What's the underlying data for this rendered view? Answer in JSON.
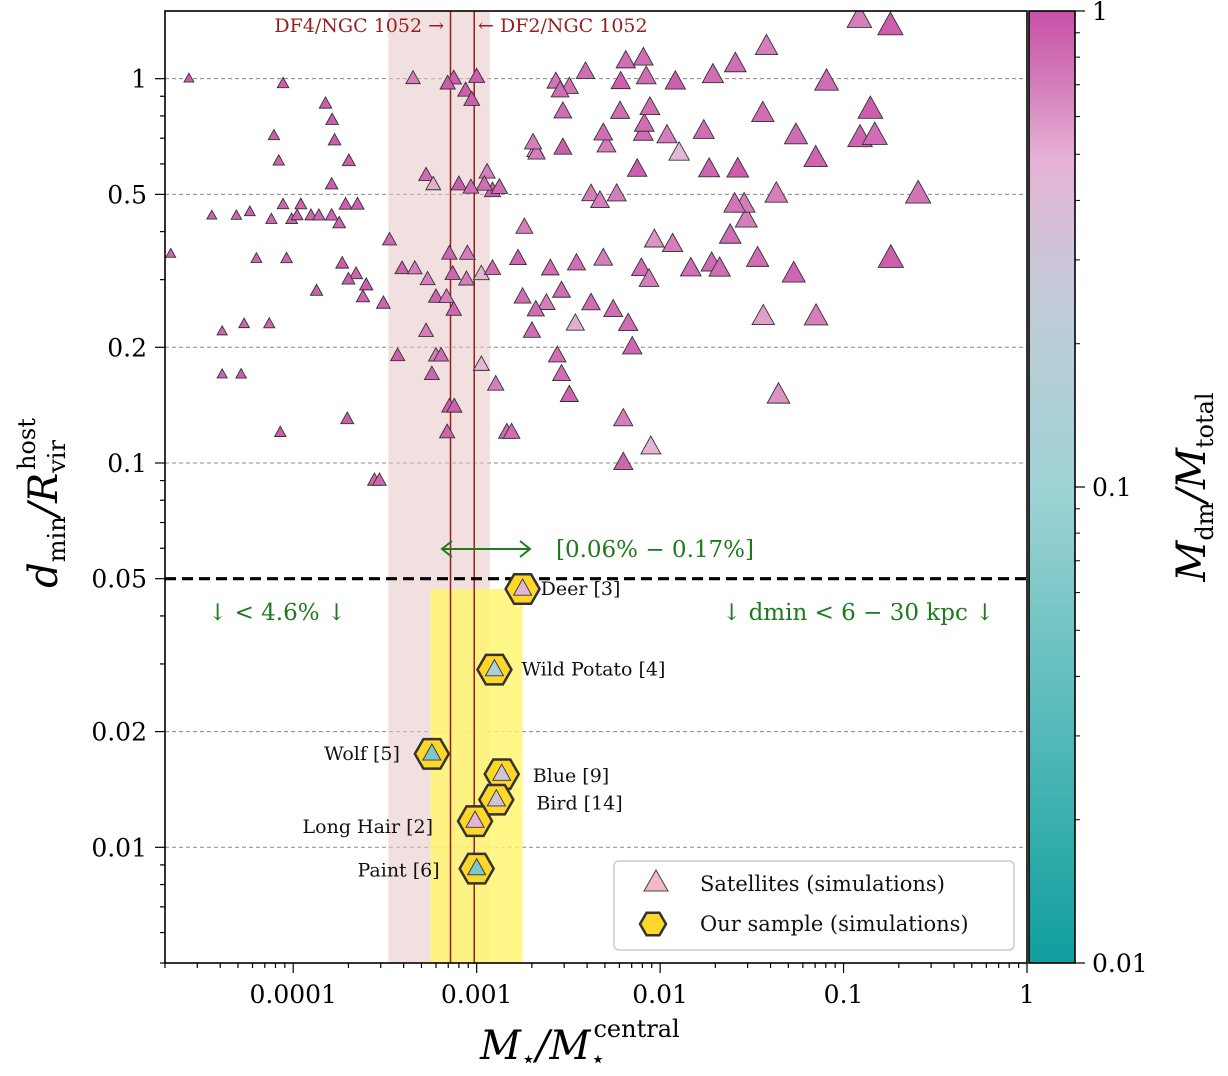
{
  "chart_data": {
    "type": "scatter",
    "xscale": "log",
    "yscale": "log",
    "xlim": [
      2e-05,
      1
    ],
    "ylim": [
      0.005,
      1.5
    ],
    "xlabel": "M⋆/M⋆central",
    "ylabel": "dmin/Rvir host",
    "x_ticks": [
      {
        "value": 0.0001,
        "label": "0.0001"
      },
      {
        "value": 0.001,
        "label": "0.001"
      },
      {
        "value": 0.01,
        "label": "0.01"
      },
      {
        "value": 0.1,
        "label": "0.1"
      },
      {
        "value": 1,
        "label": "1"
      }
    ],
    "y_ticks": [
      {
        "value": 0.01,
        "label": "0.01"
      },
      {
        "value": 0.02,
        "label": "0.02"
      },
      {
        "value": 0.05,
        "label": "0.05"
      },
      {
        "value": 0.1,
        "label": "0.1"
      },
      {
        "value": 0.2,
        "label": "0.2"
      },
      {
        "value": 0.5,
        "label": "0.5"
      },
      {
        "value": 1,
        "label": "1"
      }
    ],
    "grid": "horizontal dashed at y ticks",
    "colorbar": {
      "label": "Mdm/Mtotal",
      "scale": "log",
      "range": [
        0.01,
        1
      ],
      "ticks": [
        "0.01",
        "0.1",
        "1"
      ],
      "colors": [
        "#0f9e9e",
        "#b7d8de",
        "#cf6fb3",
        "#c851a7"
      ]
    },
    "threshold_line": {
      "y": 0.05
    },
    "ngc1052_band": {
      "x": [
        0.00033,
        0.00118
      ],
      "y": [
        0.005,
        1.5
      ],
      "color": "#e7c7c7"
    },
    "ngc1052_lines": [
      {
        "x": 0.00072,
        "label": "DF4/NGC 1052 →"
      },
      {
        "x": 0.00097,
        "label": "← DF2/NGC 1052"
      }
    ],
    "sample_band": {
      "x": [
        0.00056,
        0.00178
      ],
      "y": [
        0.005,
        0.047
      ],
      "color": "#fff56d"
    },
    "annotations": {
      "range_text": "[0.06% − 0.17%]",
      "left_text": "↓ < 4.6% ↓",
      "right_text": "↓ dmin < 6 − 30 kpc ↓"
    },
    "legend": {
      "position": "lower-right",
      "entries": [
        "Satellites (simulations)",
        "Our sample (simulations)"
      ]
    },
    "series": [
      {
        "name": "Satellites (simulations)",
        "marker": "triangle",
        "points": [
          [
            2.7e-05,
            1.0,
            0.9
          ],
          [
            8.8e-05,
            0.97,
            0.9
          ],
          [
            0.00011,
            0.47,
            0.85
          ],
          [
            7.85e-05,
            0.71,
            0.9
          ],
          [
            8.34e-05,
            0.61,
            0.85
          ],
          [
            0.000163,
            0.78,
            0.9
          ],
          [
            0.000168,
            0.69,
            0.9
          ],
          [
            0.00015,
            0.86,
            0.9
          ],
          [
            0.000162,
            0.53,
            0.9
          ],
          [
            0.000201,
            0.61,
            0.9
          ],
          [
            3.6e-05,
            0.44,
            0.85
          ],
          [
            4.9e-05,
            0.44,
            0.85
          ],
          [
            5.8e-05,
            0.45,
            0.9
          ],
          [
            7.6e-05,
            0.43,
            0.85
          ],
          [
            8.8e-05,
            0.47,
            0.85
          ],
          [
            9.8e-05,
            0.43,
            0.85
          ],
          [
            0.000105,
            0.44,
            0.85
          ],
          [
            0.000125,
            0.44,
            0.85
          ],
          [
            0.000138,
            0.44,
            0.85
          ],
          [
            0.000162,
            0.44,
            0.85
          ],
          [
            0.000178,
            0.42,
            0.85
          ],
          [
            0.000193,
            0.47,
            0.9
          ],
          [
            0.000224,
            0.47,
            0.9
          ],
          [
            0.00022,
            0.31,
            0.85
          ],
          [
            0.00025,
            0.29,
            0.9
          ],
          [
            0.00024,
            0.27,
            0.85
          ],
          [
            0.000335,
            0.38,
            0.85
          ],
          [
            0.000392,
            0.32,
            0.85
          ],
          [
            0.00031,
            0.26,
            0.85
          ],
          [
            0.000185,
            0.33,
            0.9
          ],
          [
            0.0002,
            0.3,
            0.9
          ],
          [
            0.000134,
            0.28,
            0.9
          ],
          [
            6.3e-05,
            0.34,
            0.85
          ],
          [
            9.2e-05,
            0.34,
            0.85
          ],
          [
            2.15e-05,
            0.35,
            0.85
          ],
          [
            4.1e-05,
            0.22,
            0.85
          ],
          [
            5.4e-05,
            0.23,
            0.85
          ],
          [
            7.4e-05,
            0.23,
            0.85
          ],
          [
            4.1e-05,
            0.17,
            0.85
          ],
          [
            5.2e-05,
            0.17,
            0.9
          ],
          [
            8.5e-05,
            0.12,
            0.9
          ],
          [
            0.000197,
            0.13,
            0.9
          ],
          [
            0.000277,
            0.09,
            0.85
          ],
          [
            0.000295,
            0.09,
            0.85
          ],
          [
            0.000371,
            0.19,
            0.9
          ],
          [
            0.00045,
            1.0,
            0.7
          ],
          [
            0.00075,
            1.0,
            0.9
          ],
          [
            0.00087,
            0.93,
            0.9
          ],
          [
            0.001,
            1.01,
            0.9
          ],
          [
            0.00094,
            0.88,
            0.9
          ],
          [
            0.000695,
            0.97,
            0.9
          ],
          [
            0.00053,
            0.56,
            0.8
          ],
          [
            0.00058,
            0.53,
            0.5
          ],
          [
            0.0008,
            0.53,
            0.9
          ],
          [
            0.00114,
            0.57,
            0.7
          ],
          [
            0.00122,
            0.51,
            0.9
          ],
          [
            0.0011,
            0.53,
            0.8
          ],
          [
            0.00093,
            0.52,
            0.8
          ],
          [
            0.00046,
            0.32,
            0.7
          ],
          [
            0.00054,
            0.3,
            0.7
          ],
          [
            0.00071,
            0.35,
            0.85
          ],
          [
            0.00074,
            0.31,
            0.85
          ],
          [
            0.00088,
            0.3,
            0.7
          ],
          [
            0.00106,
            0.31,
            0.45
          ],
          [
            0.00122,
            0.32,
            0.8
          ],
          [
            0.00089,
            0.35,
            0.7
          ],
          [
            0.00075,
            0.25,
            0.85
          ],
          [
            0.0006,
            0.27,
            0.85
          ],
          [
            0.000685,
            0.27,
            0.7
          ],
          [
            0.00053,
            0.22,
            0.7
          ],
          [
            0.0006,
            0.19,
            0.7
          ],
          [
            0.00057,
            0.17,
            0.85
          ],
          [
            0.00064,
            0.19,
            0.8
          ],
          [
            0.00071,
            0.14,
            0.9
          ],
          [
            0.00069,
            0.12,
            0.85
          ],
          [
            0.000755,
            0.14,
            0.9
          ],
          [
            0.00106,
            0.18,
            0.45
          ],
          [
            0.00127,
            0.16,
            0.7
          ],
          [
            0.00146,
            0.12,
            0.8
          ],
          [
            0.00155,
            0.12,
            0.8
          ],
          [
            0.00168,
            0.34,
            0.85
          ],
          [
            0.00182,
            0.41,
            0.7
          ],
          [
            0.00133,
            0.52,
            0.8
          ],
          [
            0.00209,
            0.65,
            0.55
          ],
          [
            0.00295,
            0.66,
            0.9
          ],
          [
            0.0027,
            0.98,
            0.75
          ],
          [
            0.0032,
            0.95,
            0.75
          ],
          [
            0.00392,
            1.04,
            0.8
          ],
          [
            0.00212,
            0.64,
            0.7
          ],
          [
            0.00203,
            0.68,
            0.7
          ],
          [
            0.0042,
            0.5,
            0.7
          ],
          [
            0.00285,
            0.93,
            0.8
          ],
          [
            0.00295,
            0.82,
            0.8
          ],
          [
            0.0051,
            0.67,
            0.7
          ],
          [
            0.0047,
            0.48,
            0.7
          ],
          [
            0.0058,
            0.5,
            0.7
          ],
          [
            0.00605,
            0.82,
            0.8
          ],
          [
            0.0049,
            0.72,
            0.8
          ],
          [
            0.0061,
            0.98,
            0.9
          ],
          [
            0.0065,
            1.11,
            0.8
          ],
          [
            0.0084,
            1.01,
            0.8
          ],
          [
            0.0081,
            1.13,
            0.8
          ],
          [
            0.0081,
            0.72,
            0.8
          ],
          [
            0.0082,
            0.76,
            0.8
          ],
          [
            0.0088,
            0.84,
            0.8
          ],
          [
            0.0075,
            0.58,
            0.9
          ],
          [
            0.0109,
            0.71,
            0.7
          ],
          [
            0.0121,
            0.98,
            0.9
          ],
          [
            0.0127,
            0.64,
            0.45
          ],
          [
            0.0173,
            0.73,
            0.8
          ],
          [
            0.0194,
            1.02,
            0.8
          ],
          [
            0.0257,
            1.09,
            0.8
          ],
          [
            0.0295,
            0.43,
            0.7
          ],
          [
            0.0287,
            0.47,
            0.7
          ],
          [
            0.038,
            1.21,
            0.7
          ],
          [
            0.043,
            0.5,
            0.7
          ],
          [
            0.0185,
            0.58,
            0.85
          ],
          [
            0.0255,
            0.47,
            0.75
          ],
          [
            0.0265,
            0.58,
            0.9
          ],
          [
            0.0363,
            0.81,
            0.8
          ],
          [
            0.055,
            0.71,
            0.8
          ],
          [
            0.0705,
            0.62,
            0.85
          ],
          [
            0.0808,
            0.98,
            0.8
          ],
          [
            0.123,
            0.7,
            0.85
          ],
          [
            0.148,
            0.71,
            0.8
          ],
          [
            0.14,
            0.83,
            0.9
          ],
          [
            0.18,
            1.37,
            0.9
          ],
          [
            0.255,
            0.5,
            0.75
          ],
          [
            0.181,
            0.34,
            0.9
          ],
          [
            0.122,
            1.43,
            0.7
          ],
          [
            0.002,
            0.22,
            0.8
          ],
          [
            0.0024,
            0.26,
            0.7
          ],
          [
            0.0029,
            0.28,
            0.8
          ],
          [
            0.00345,
            0.23,
            0.5
          ],
          [
            0.0042,
            0.26,
            0.8
          ],
          [
            0.00555,
            0.25,
            0.8
          ],
          [
            0.00705,
            0.2,
            0.85
          ],
          [
            0.0067,
            0.23,
            0.8
          ],
          [
            0.00275,
            0.19,
            0.8
          ],
          [
            0.0032,
            0.15,
            0.85
          ],
          [
            0.0029,
            0.17,
            0.8
          ],
          [
            0.0035,
            0.33,
            0.8
          ],
          [
            0.0049,
            0.34,
            0.7
          ],
          [
            0.0079,
            0.32,
            0.8
          ],
          [
            0.0087,
            0.3,
            0.7
          ],
          [
            0.0093,
            0.38,
            0.6
          ],
          [
            0.0117,
            0.37,
            0.7
          ],
          [
            0.0147,
            0.32,
            0.8
          ],
          [
            0.0191,
            0.33,
            0.8
          ],
          [
            0.0241,
            0.39,
            0.8
          ],
          [
            0.0211,
            0.32,
            0.8
          ],
          [
            0.034,
            0.34,
            0.8
          ],
          [
            0.0535,
            0.31,
            0.85
          ],
          [
            0.0365,
            0.24,
            0.55
          ],
          [
            0.0708,
            0.24,
            0.7
          ],
          [
            0.0442,
            0.15,
            0.6
          ],
          [
            0.0063,
            0.13,
            0.7
          ],
          [
            0.0089,
            0.11,
            0.45
          ],
          [
            0.0063,
            0.1,
            0.85
          ],
          [
            0.00252,
            0.32,
            0.8
          ],
          [
            0.0021,
            0.25,
            0.8
          ],
          [
            0.00178,
            0.27,
            0.8
          ]
        ]
      },
      {
        "name": "Our sample (simulations)",
        "marker": "hexagon",
        "points": [
          {
            "x": 0.00178,
            "y": 0.047,
            "c": 0.45,
            "label": "Deer [3]"
          },
          {
            "x": 0.00125,
            "y": 0.029,
            "c": 0.14,
            "label": "Wild Potato [4]"
          },
          {
            "x": 0.00057,
            "y": 0.0175,
            "c": 0.06,
            "label": "Wolf [5]"
          },
          {
            "x": 0.00137,
            "y": 0.0155,
            "c": 0.3,
            "label": "Blue [9]"
          },
          {
            "x": 0.00128,
            "y": 0.0133,
            "c": 0.3,
            "label": "Bird [14]"
          },
          {
            "x": 0.00098,
            "y": 0.0117,
            "c": 0.45,
            "label": "Long Hair [2]"
          },
          {
            "x": 0.001,
            "y": 0.0088,
            "c": 0.06,
            "label": "Paint [6]"
          }
        ]
      }
    ]
  }
}
